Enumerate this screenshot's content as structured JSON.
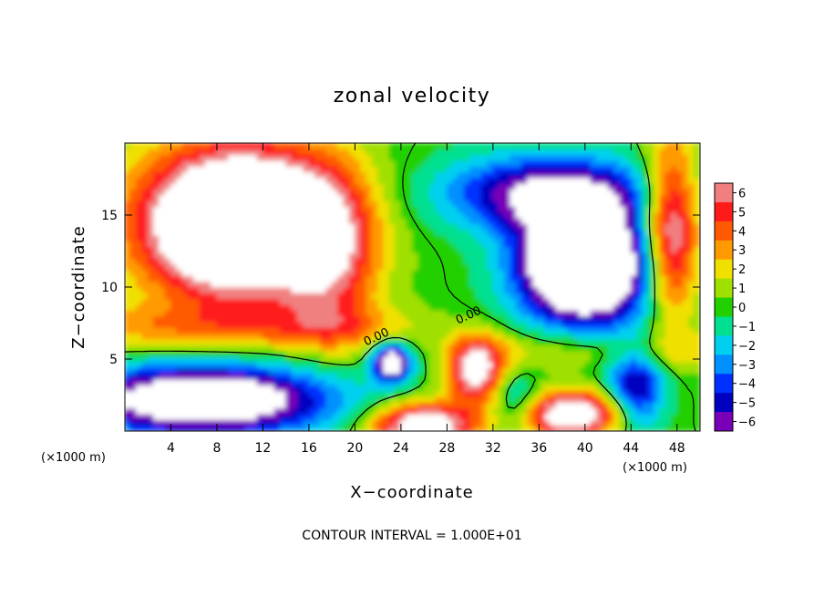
{
  "chart_data": {
    "type": "heatmap",
    "title": "zonal velocity",
    "xlabel": "X−coordinate",
    "ylabel": "Z−coordinate",
    "x_unit_left": "(×1000 m)",
    "x_unit_right": "(×1000 m)",
    "xlim": [
      0,
      50
    ],
    "ylim": [
      0,
      20
    ],
    "xticks": [
      4,
      8,
      12,
      16,
      20,
      24,
      28,
      32,
      36,
      40,
      44,
      48
    ],
    "xtick_labels": [
      "4",
      "8",
      "12",
      "16",
      "20",
      "24",
      "28",
      "32",
      "36",
      "40",
      "44",
      "48"
    ],
    "yticks": [
      5,
      10,
      15
    ],
    "ytick_labels": [
      "5",
      "10",
      "15"
    ],
    "colorbar": {
      "levels": [
        6,
        5,
        4,
        3,
        2,
        1,
        0,
        -1,
        -2,
        -3,
        -4,
        -5,
        -6
      ],
      "labels": [
        "6",
        "5",
        "4",
        "3",
        "2",
        "1",
        "0",
        "−1",
        "−2",
        "−3",
        "−4",
        "−5",
        "−6"
      ],
      "colors": [
        "#f08080",
        "#ff1a1a",
        "#ff5a00",
        "#ff9a00",
        "#f0e000",
        "#a0e000",
        "#22d000",
        "#00e090",
        "#00d0f0",
        "#0090ff",
        "#0030ff",
        "#0000c0",
        "#7a00b8"
      ],
      "overflow_color": "#ffffff"
    },
    "contour_labels": [
      {
        "text": "0.00",
        "x": 22.0,
        "y": 6.3
      },
      {
        "text": "0.00",
        "x": 30.0,
        "y": 7.8
      }
    ],
    "footer": "CONTOUR INTERVAL = 1.000E+01",
    "grid": false
  }
}
